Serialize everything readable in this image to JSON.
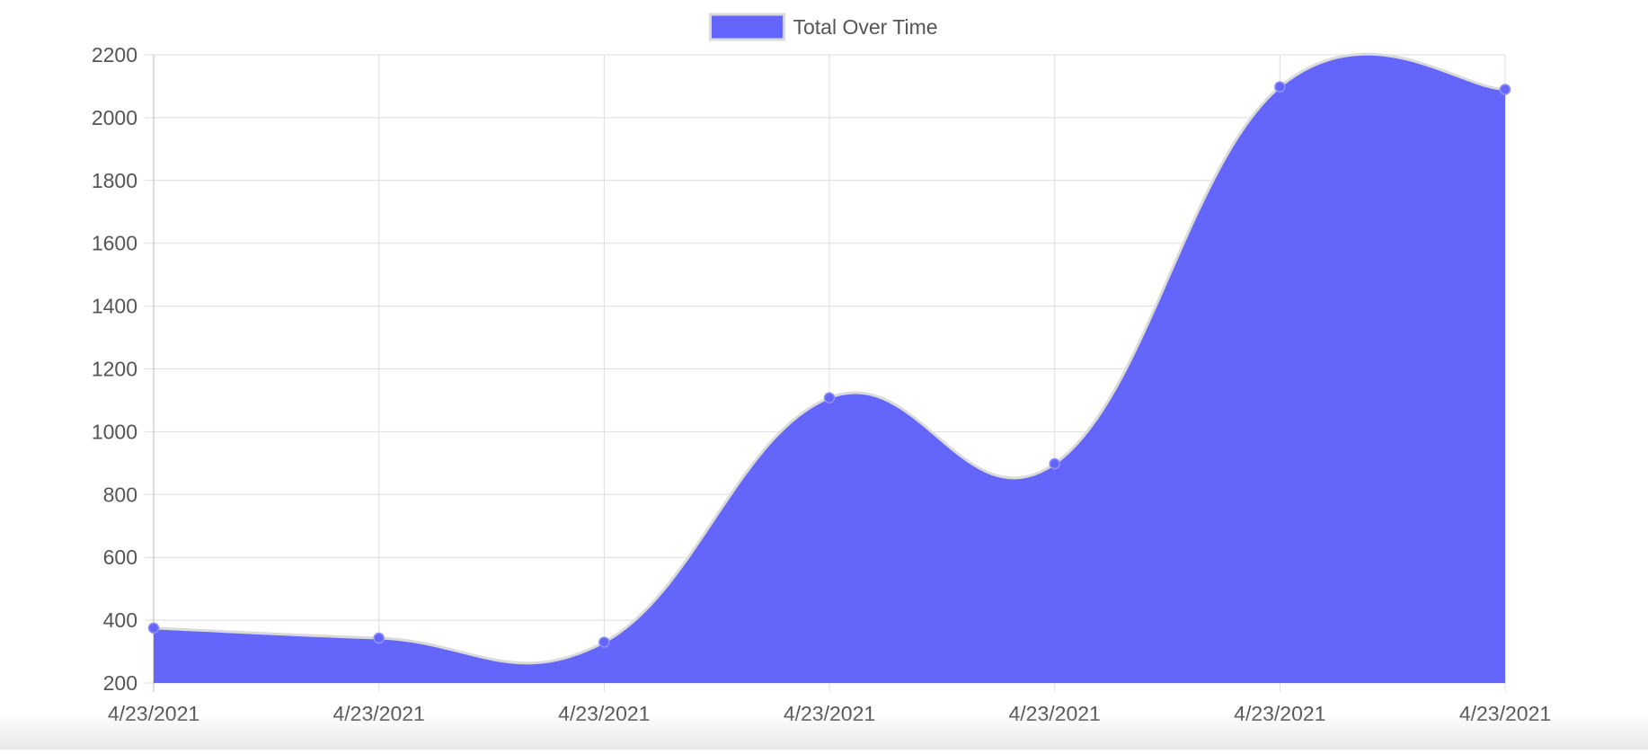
{
  "chart_data": {
    "type": "area",
    "title": "",
    "xlabel": "",
    "ylabel": "",
    "categories": [
      "4/23/2021",
      "4/23/2021",
      "4/23/2021",
      "4/23/2021",
      "4/23/2021",
      "4/23/2021",
      "4/23/2021"
    ],
    "series": [
      {
        "name": "Total Over Time",
        "values": [
          375,
          343,
          330,
          1108,
          898,
          2098,
          2090
        ]
      }
    ],
    "ylim": [
      200,
      2200
    ],
    "yticks": [
      "2200",
      "2000",
      "1800",
      "1600",
      "1400",
      "1200",
      "1000",
      "800",
      "600",
      "400",
      "200"
    ],
    "grid": true,
    "legend_position": "top-center",
    "colors": {
      "fill": "#6466fb",
      "line": "#dadada",
      "point": "#6466fb",
      "grid": "#dddddd",
      "axis": "#bbbbbb"
    },
    "smooth": true
  }
}
